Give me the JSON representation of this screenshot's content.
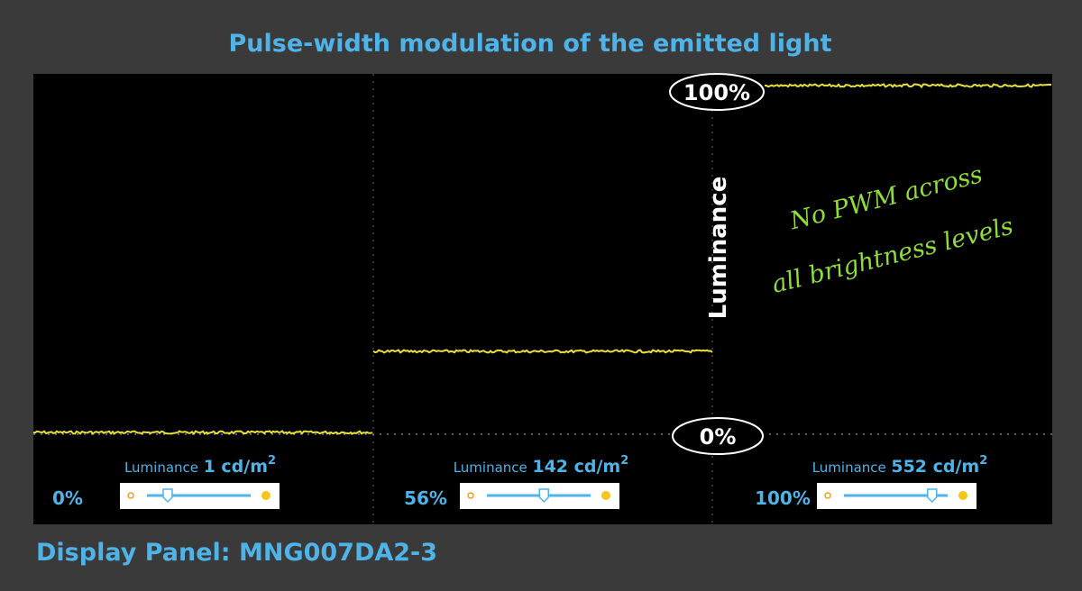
{
  "title": "Pulse-width modulation of the emitted light",
  "scope": {
    "top_marker": "100%",
    "bottom_marker": "0%",
    "axis_label": "Luminance",
    "annotation": [
      "No PWM across",
      "all brightness levels"
    ]
  },
  "panels": [
    {
      "label": "Luminance",
      "value": "1 cd/m",
      "exponent": "2",
      "brightness": "0%"
    },
    {
      "label": "Luminance",
      "value": "142 cd/m",
      "exponent": "2",
      "brightness": "56%"
    },
    {
      "label": "Luminance",
      "value": "552 cd/m",
      "exponent": "2",
      "brightness": "100%"
    }
  ],
  "footer": "Display Panel: MNG007DA2-3"
}
